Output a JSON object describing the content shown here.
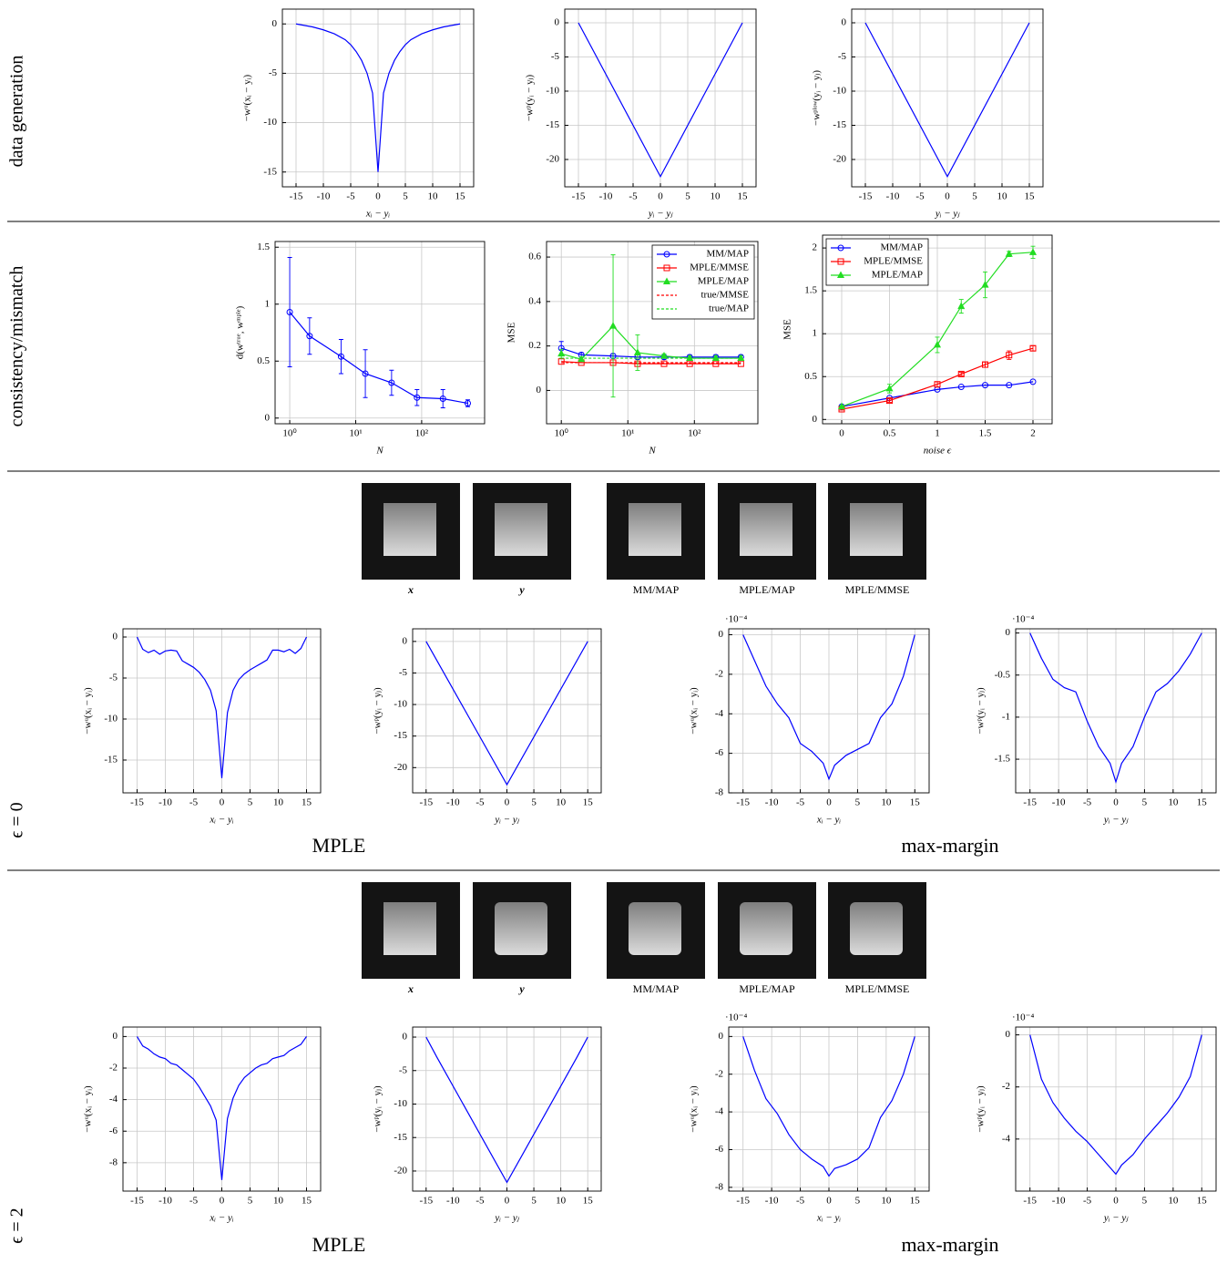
{
  "row_labels": [
    "data generation",
    "consistency/mismatch",
    "ϵ = 0",
    "ϵ = 2"
  ],
  "image_rows": [
    {
      "captions": [
        "x",
        "y",
        "MM/MAP",
        "MPLE/MAP",
        "MPLE/MMSE"
      ],
      "methods": [
        "MPLE",
        "max-margin"
      ]
    },
    {
      "captions": [
        "x",
        "y",
        "MM/MAP",
        "MPLE/MAP",
        "MPLE/MMSE"
      ],
      "methods": [
        "MPLE",
        "max-margin"
      ]
    }
  ],
  "chart_data": [
    {
      "type": "line",
      "xlabel": "xᵢ − yᵢ",
      "ylabel": "−wᵘ(xᵢ − yᵢ)",
      "grid": true,
      "x": [
        -15,
        -12,
        -10,
        -8,
        -6,
        -5,
        -4,
        -3,
        -2,
        -1,
        0,
        1,
        2,
        3,
        4,
        5,
        6,
        8,
        10,
        12,
        15
      ],
      "series": [
        {
          "color": "#0000ff",
          "values": [
            0,
            -0.3,
            -0.6,
            -1.0,
            -1.6,
            -2.1,
            -2.8,
            -3.7,
            -5,
            -7,
            -15,
            -7,
            -5,
            -3.7,
            -2.8,
            -2.1,
            -1.6,
            -1.0,
            -0.6,
            -0.3,
            0
          ]
        }
      ],
      "xlim": [
        -17.5,
        17.5
      ],
      "xticks": [
        -15,
        -10,
        -5,
        0,
        5,
        10,
        15
      ],
      "ylim": [
        -16.5,
        1.5
      ],
      "yticks": [
        -15,
        -10,
        -5,
        0
      ]
    },
    {
      "type": "line",
      "xlabel": "yᵢ − yⱼ",
      "ylabel": "−wᵖ(yᵢ − yⱼ)",
      "grid": true,
      "x": [
        -15,
        0,
        15
      ],
      "series": [
        {
          "color": "#0000ff",
          "values": [
            0,
            -22.5,
            0
          ]
        }
      ],
      "xlim": [
        -17.5,
        17.5
      ],
      "xticks": [
        -15,
        -10,
        -5,
        0,
        5,
        10,
        15
      ],
      "ylim": [
        -24,
        2
      ],
      "yticks": [
        -20,
        -15,
        -10,
        -5,
        0
      ]
    },
    {
      "type": "line",
      "xlabel": "yᵢ − yⱼ",
      "ylabel": "−wᵖˡᵒʷ(yᵢ − yⱼ)",
      "grid": true,
      "x": [
        -15,
        0,
        15
      ],
      "series": [
        {
          "color": "#0000ff",
          "values": [
            0,
            -22.5,
            0
          ]
        }
      ],
      "xlim": [
        -17.5,
        17.5
      ],
      "xticks": [
        -15,
        -10,
        -5,
        0,
        5,
        10,
        15
      ],
      "ylim": [
        -24,
        2
      ],
      "yticks": [
        -20,
        -15,
        -10,
        -5,
        0
      ]
    },
    {
      "type": "line",
      "xlabel": "N",
      "ylabel": "d(wᵗʳᵘᵉ, wᵐᵖˡᵉ)",
      "grid": true,
      "xlog": true,
      "x": [
        1,
        2,
        6,
        14,
        35,
        85,
        210,
        500
      ],
      "series": [
        {
          "color": "#0000ff",
          "marker": "circle",
          "values": [
            0.93,
            0.72,
            0.54,
            0.39,
            0.31,
            0.18,
            0.17,
            0.13
          ],
          "errors": [
            0.48,
            0.16,
            0.15,
            0.21,
            0.11,
            0.07,
            0.08,
            0.03
          ]
        }
      ],
      "xlim": [
        0.6,
        900
      ],
      "xticks": [
        {
          "value": 1,
          "label": "10⁰"
        },
        {
          "value": 10,
          "label": "10¹"
        },
        {
          "value": 100,
          "label": "10²"
        }
      ],
      "ylim": [
        -0.05,
        1.55
      ],
      "yticks": [
        0,
        0.5,
        1,
        1.5
      ]
    },
    {
      "type": "line",
      "xlabel": "N",
      "ylabel": "MSE",
      "grid": true,
      "xlog": true,
      "legend": "upper right",
      "x": [
        1,
        2,
        6,
        14,
        35,
        85,
        210,
        500
      ],
      "series": [
        {
          "name": "MM/MAP",
          "color": "#0000ff",
          "marker": "circle",
          "values": [
            0.19,
            0.16,
            0.155,
            0.15,
            0.15,
            0.15,
            0.15,
            0.15
          ],
          "errors": [
            0.03,
            0.01,
            0.01,
            0.01,
            0.01,
            0.01,
            0.01,
            0.01
          ]
        },
        {
          "name": "MPLE/MMSE",
          "color": "#ff0000",
          "marker": "square",
          "values": [
            0.13,
            0.125,
            0.125,
            0.12,
            0.12,
            0.12,
            0.12,
            0.12
          ]
        },
        {
          "name": "MPLE/MAP",
          "color": "#22dd22",
          "marker": "triangle",
          "values": [
            0.165,
            0.14,
            0.29,
            0.17,
            0.155,
            0.145,
            0.145,
            0.145
          ],
          "errors": [
            0.02,
            0.01,
            0.32,
            0.08,
            0.01,
            0.01,
            0.01,
            0.01
          ]
        },
        {
          "name": "true/MMSE",
          "color": "#ff0000",
          "dash": true,
          "values": [
            0.125,
            0.125,
            0.125,
            0.125,
            0.125,
            0.125,
            0.125,
            0.125
          ]
        },
        {
          "name": "true/MAP",
          "color": "#22dd22",
          "dash": true,
          "values": [
            0.145,
            0.145,
            0.145,
            0.145,
            0.145,
            0.145,
            0.145,
            0.145
          ]
        }
      ],
      "xlim": [
        0.6,
        900
      ],
      "xticks": [
        {
          "value": 1,
          "label": "10⁰"
        },
        {
          "value": 10,
          "label": "10¹"
        },
        {
          "value": 100,
          "label": "10²"
        }
      ],
      "ylim": [
        -0.15,
        0.67
      ],
      "yticks": [
        0,
        0.2,
        0.4,
        0.6
      ]
    },
    {
      "type": "line",
      "xlabel": "noise ϵ",
      "ylabel": "MSE",
      "grid": true,
      "legend": "upper left",
      "x": [
        0,
        0.5,
        1,
        1.25,
        1.5,
        1.75,
        2
      ],
      "series": [
        {
          "name": "MM/MAP",
          "color": "#0000ff",
          "marker": "circle",
          "values": [
            0.15,
            0.25,
            0.35,
            0.38,
            0.4,
            0.4,
            0.44
          ]
        },
        {
          "name": "MPLE/MMSE",
          "color": "#ff0000",
          "marker": "square",
          "values": [
            0.12,
            0.22,
            0.41,
            0.53,
            0.64,
            0.75,
            0.83
          ],
          "errors": [
            0.01,
            0.02,
            0.03,
            0.02,
            0.03,
            0.05,
            0.03
          ]
        },
        {
          "name": "MPLE/MAP",
          "color": "#22dd22",
          "marker": "triangle",
          "values": [
            0.15,
            0.36,
            0.87,
            1.32,
            1.57,
            1.93,
            1.95
          ],
          "errors": [
            0.01,
            0.05,
            0.09,
            0.08,
            0.15,
            0.03,
            0.07
          ]
        }
      ],
      "xlim": [
        -0.2,
        2.2
      ],
      "xticks": [
        0,
        0.5,
        1,
        1.5,
        2
      ],
      "ylim": [
        -0.05,
        2.15
      ],
      "yticks": [
        0,
        0.5,
        1,
        1.5,
        2
      ]
    },
    {
      "type": "line",
      "xlabel": "xᵢ − yᵢ",
      "ylabel": "−wᵘ(xᵢ − yᵢ)",
      "grid": true,
      "x": [
        -15,
        -14,
        -13,
        -12,
        -11,
        -10,
        -9,
        -8,
        -7,
        -6,
        -5,
        -4,
        -3,
        -2,
        -1,
        0,
        1,
        2,
        3,
        4,
        5,
        6,
        7,
        8,
        9,
        10,
        11,
        12,
        13,
        14,
        15
      ],
      "series": [
        {
          "color": "#0000ff",
          "values": [
            0,
            -1.5,
            -1.9,
            -1.6,
            -2.1,
            -1.7,
            -1.6,
            -1.7,
            -2.9,
            -3.3,
            -3.7,
            -4.3,
            -5.2,
            -6.5,
            -9,
            -17.2,
            -9.2,
            -6.5,
            -5.2,
            -4.5,
            -4,
            -3.6,
            -3.2,
            -2.8,
            -1.6,
            -1.6,
            -1.8,
            -1.5,
            -2,
            -1.4,
            0
          ]
        }
      ],
      "xlim": [
        -17.5,
        17.5
      ],
      "xticks": [
        -15,
        -10,
        -5,
        0,
        5,
        10,
        15
      ],
      "ylim": [
        -19,
        1
      ],
      "yticks": [
        -15,
        -10,
        -5,
        0
      ]
    },
    {
      "type": "line",
      "xlabel": "yᵢ − yⱼ",
      "ylabel": "−wᵖ(yᵢ − yⱼ)",
      "grid": true,
      "x": [
        -15,
        0,
        15
      ],
      "series": [
        {
          "color": "#0000ff",
          "values": [
            0,
            -22.7,
            0
          ]
        }
      ],
      "xlim": [
        -17.5,
        17.5
      ],
      "xticks": [
        -15,
        -10,
        -5,
        0,
        5,
        10,
        15
      ],
      "ylim": [
        -24,
        2
      ],
      "yticks": [
        -20,
        -15,
        -10,
        -5,
        0
      ]
    },
    {
      "type": "line",
      "xlabel": "xᵢ − yᵢ",
      "ylabel": "−wᵘ(xᵢ − yᵢ)",
      "grid": true,
      "y_scale_label": "·10⁻⁴",
      "x": [
        -15,
        -13,
        -11,
        -9,
        -7,
        -5,
        -3,
        -1,
        0,
        1,
        3,
        5,
        7,
        9,
        11,
        13,
        15
      ],
      "series": [
        {
          "color": "#0000ff",
          "values": [
            0,
            -1.3,
            -2.6,
            -3.5,
            -4.2,
            -5.5,
            -5.9,
            -6.5,
            -7.3,
            -6.6,
            -6.1,
            -5.8,
            -5.5,
            -4.2,
            -3.5,
            -2.1,
            0
          ]
        }
      ],
      "xlim": [
        -17.5,
        17.5
      ],
      "xticks": [
        -15,
        -10,
        -5,
        0,
        5,
        10,
        15
      ],
      "ylim": [
        -8,
        0.3
      ],
      "yticks": [
        -8,
        -6,
        -4,
        -2,
        0
      ]
    },
    {
      "type": "line",
      "xlabel": "yᵢ − yⱼ",
      "ylabel": "−wᵖ(yᵢ − yⱼ)",
      "grid": true,
      "y_scale_label": "·10⁻⁴",
      "x": [
        -15,
        -13,
        -11,
        -9,
        -7,
        -5,
        -3,
        -1,
        0,
        1,
        3,
        5,
        7,
        9,
        11,
        13,
        15
      ],
      "series": [
        {
          "color": "#0000ff",
          "values": [
            0,
            -0.3,
            -0.55,
            -0.65,
            -0.7,
            -1.05,
            -1.35,
            -1.55,
            -1.77,
            -1.55,
            -1.35,
            -1.0,
            -0.7,
            -0.6,
            -0.45,
            -0.25,
            0
          ]
        }
      ],
      "xlim": [
        -17.5,
        17.5
      ],
      "xticks": [
        -15,
        -10,
        -5,
        0,
        5,
        10,
        15
      ],
      "ylim": [
        -1.9,
        0.05
      ],
      "yticks": [
        -1.5,
        -1,
        -0.5,
        0
      ]
    },
    {
      "type": "line",
      "xlabel": "xᵢ − yᵢ",
      "ylabel": "−wᵘ(xᵢ − yᵢ)",
      "grid": true,
      "x": [
        -15,
        -14,
        -13,
        -12,
        -11,
        -10,
        -9,
        -8,
        -7,
        -6,
        -5,
        -4,
        -3,
        -2,
        -1,
        0,
        1,
        2,
        3,
        4,
        5,
        6,
        7,
        8,
        9,
        10,
        11,
        12,
        13,
        14,
        15
      ],
      "series": [
        {
          "color": "#0000ff",
          "values": [
            0,
            -0.6,
            -0.8,
            -1.1,
            -1.3,
            -1.4,
            -1.7,
            -1.8,
            -2.1,
            -2.4,
            -2.7,
            -3.2,
            -3.8,
            -4.4,
            -5.3,
            -9.1,
            -5.2,
            -3.9,
            -3.1,
            -2.6,
            -2.3,
            -2.0,
            -1.8,
            -1.7,
            -1.4,
            -1.3,
            -1.2,
            -0.9,
            -0.7,
            -0.5,
            0
          ]
        }
      ],
      "xlim": [
        -17.5,
        17.5
      ],
      "xticks": [
        -15,
        -10,
        -5,
        0,
        5,
        10,
        15
      ],
      "ylim": [
        -9.8,
        0.6
      ],
      "yticks": [
        -8,
        -6,
        -4,
        -2,
        0
      ]
    },
    {
      "type": "line",
      "xlabel": "yᵢ − yⱼ",
      "ylabel": "−wᵖ(yᵢ − yⱼ)",
      "grid": true,
      "x": [
        -15,
        -13,
        0,
        13,
        15
      ],
      "series": [
        {
          "color": "#0000ff",
          "values": [
            0,
            -3,
            -21.7,
            -3,
            0
          ]
        }
      ],
      "xlim": [
        -17.5,
        17.5
      ],
      "xticks": [
        -15,
        -10,
        -5,
        0,
        5,
        10,
        15
      ],
      "ylim": [
        -23,
        1.5
      ],
      "yticks": [
        -20,
        -15,
        -10,
        -5,
        0
      ]
    },
    {
      "type": "line",
      "xlabel": "xᵢ − yᵢ",
      "ylabel": "−wᵘ(xᵢ − yᵢ)",
      "grid": true,
      "y_scale_label": "·10⁻⁴",
      "x": [
        -15,
        -13,
        -11,
        -9,
        -7,
        -5,
        -3,
        -1,
        0,
        1,
        3,
        5,
        7,
        9,
        11,
        13,
        15
      ],
      "series": [
        {
          "color": "#0000ff",
          "values": [
            0,
            -1.8,
            -3.3,
            -4.1,
            -5.2,
            -6.0,
            -6.5,
            -6.9,
            -7.4,
            -7.0,
            -6.8,
            -6.5,
            -5.9,
            -4.3,
            -3.4,
            -2.0,
            0
          ]
        }
      ],
      "xlim": [
        -17.5,
        17.5
      ],
      "xticks": [
        -15,
        -10,
        -5,
        0,
        5,
        10,
        15
      ],
      "ylim": [
        -8.2,
        0.5
      ],
      "yticks": [
        -8,
        -6,
        -4,
        -2,
        0
      ]
    },
    {
      "type": "line",
      "xlabel": "yᵢ − yⱼ",
      "ylabel": "−wᵖ(yᵢ − yⱼ)",
      "grid": true,
      "y_scale_label": "·10⁻⁴",
      "x": [
        -15,
        -13,
        -11,
        -9,
        -7,
        -5,
        -3,
        -1,
        0,
        1,
        3,
        5,
        7,
        9,
        11,
        13,
        15
      ],
      "series": [
        {
          "color": "#0000ff",
          "values": [
            0,
            -1.7,
            -2.6,
            -3.2,
            -3.7,
            -4.1,
            -4.6,
            -5.1,
            -5.35,
            -5,
            -4.6,
            -4,
            -3.5,
            -3,
            -2.4,
            -1.6,
            0
          ]
        }
      ],
      "xlim": [
        -17.5,
        17.5
      ],
      "xticks": [
        -15,
        -10,
        -5,
        0,
        5,
        10,
        15
      ],
      "ylim": [
        -6,
        0.3
      ],
      "yticks": [
        -4,
        -2,
        0
      ]
    }
  ]
}
